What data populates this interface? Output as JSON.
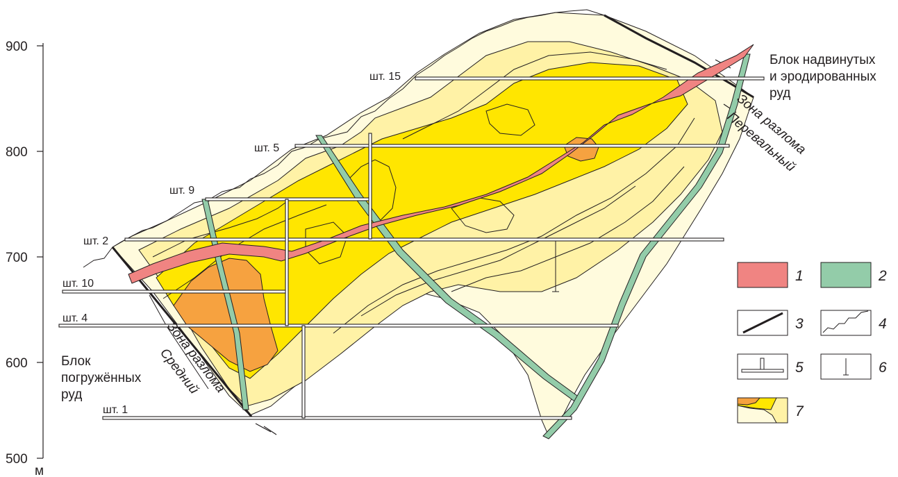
{
  "axis": {
    "unit": "м",
    "ticks": [
      "900",
      "800",
      "700",
      "600",
      "500"
    ]
  },
  "adits": [
    {
      "label": "шт. 15"
    },
    {
      "label": "шт. 5"
    },
    {
      "label": "шт. 9"
    },
    {
      "label": "шт. 2"
    },
    {
      "label": "шт. 10"
    },
    {
      "label": "шт. 4"
    },
    {
      "label": "шт. 1"
    }
  ],
  "blocks": {
    "upper": [
      "Блок надвинутых",
      "и эродированных",
      "руд"
    ],
    "lower": [
      "Блок",
      "погружённых",
      "руд"
    ]
  },
  "faults": {
    "pereval": [
      "Зона разлома",
      "Перевальный"
    ],
    "sredniy": [
      "Зона разлома",
      "Средний"
    ]
  },
  "legend": [
    {
      "num": "1",
      "symbol": "red-vein",
      "color": "#f08482"
    },
    {
      "num": "2",
      "symbol": "green-dike",
      "color": "#93cca9"
    },
    {
      "num": "3",
      "symbol": "fault-line"
    },
    {
      "num": "4",
      "symbol": "surface-line"
    },
    {
      "num": "5",
      "symbol": "adit-symbol"
    },
    {
      "num": "6",
      "symbol": "borehole-symbol"
    },
    {
      "num": "7",
      "symbol": "grade-contours",
      "colors": [
        "#f6a240",
        "#ffe600",
        "#fff2a6",
        "#fffbdd"
      ]
    }
  ],
  "colors": {
    "vein": "#f08482",
    "dike": "#93cca9",
    "zone_high": "#f6a240",
    "zone_mid": "#ffe600",
    "zone_low": "#fff2a6",
    "zone_lowest": "#fffbdd"
  }
}
